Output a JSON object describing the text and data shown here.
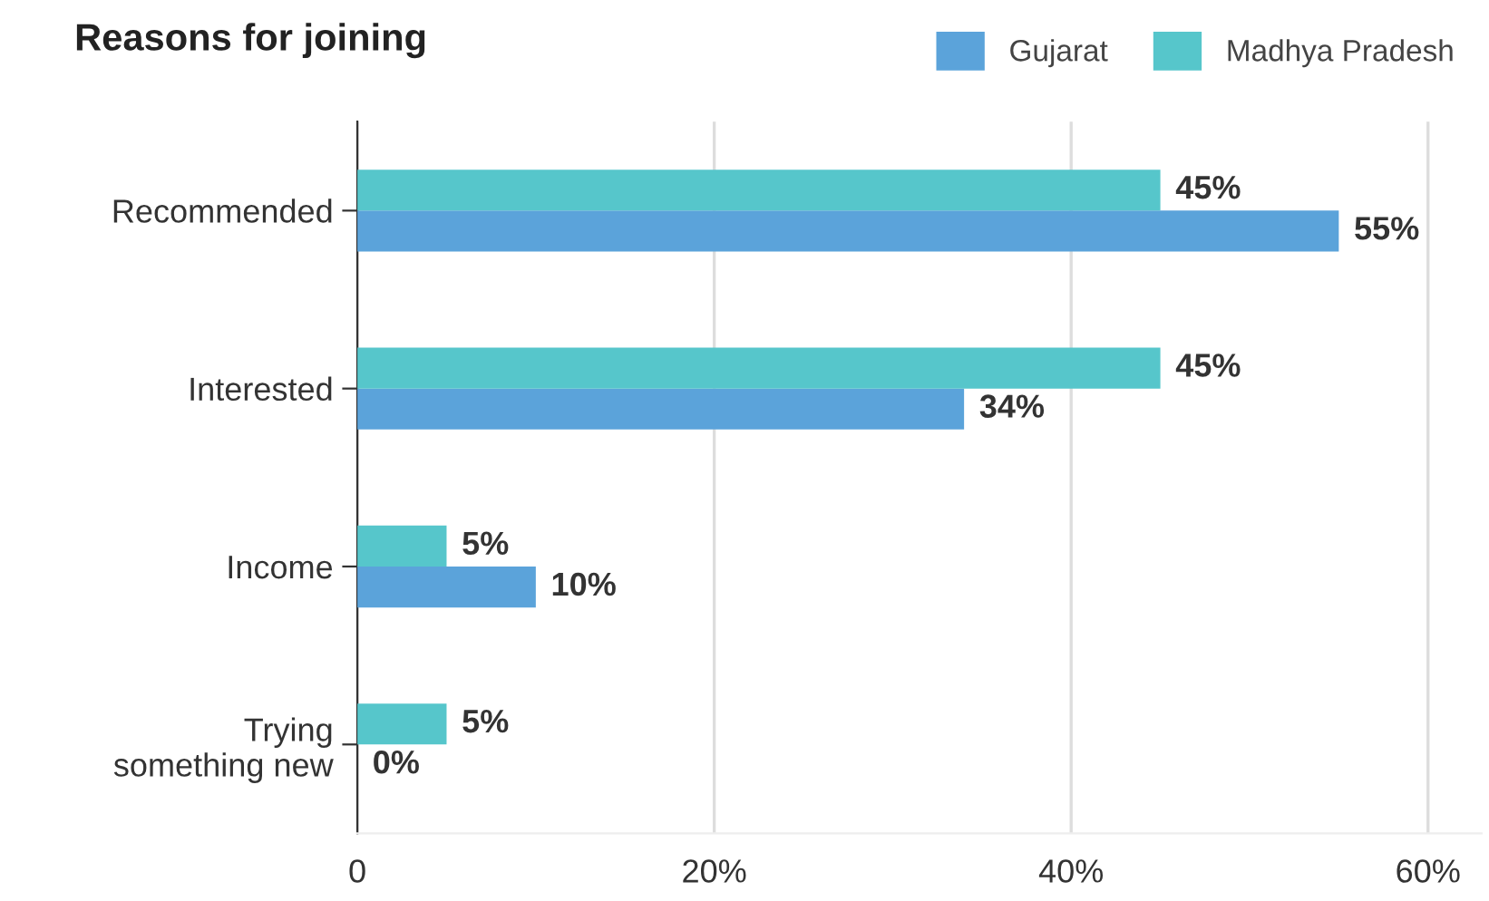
{
  "chart_data": {
    "type": "bar",
    "orientation": "horizontal",
    "title": "Reasons for joining",
    "categories": [
      "Recommended",
      "Interested",
      "Income",
      "Trying\nsomething new"
    ],
    "series": [
      {
        "name": "Gujarat",
        "color": "#5ba3da",
        "values": [
          55,
          34,
          10,
          0
        ],
        "value_labels": [
          "55%",
          "34%",
          "10%",
          "0%"
        ]
      },
      {
        "name": "Madhya Pradesh",
        "color": "#56c6cb",
        "values": [
          45,
          45,
          5,
          5
        ],
        "value_labels": [
          "45%",
          "45%",
          "5%",
          "5%"
        ]
      }
    ],
    "xlim": [
      0,
      63
    ],
    "xticks": [
      0,
      {
        "value": 20,
        "label": "20%"
      },
      {
        "value": 40,
        "label": "40%"
      },
      {
        "value": 60,
        "label": "60%"
      }
    ],
    "grid": "x",
    "legend": "top right"
  }
}
